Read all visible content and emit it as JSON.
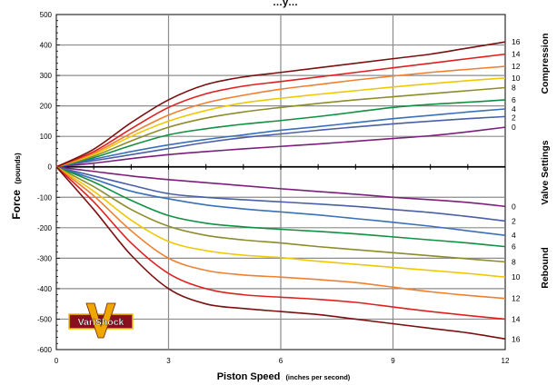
{
  "chart_data": {
    "type": "line",
    "title": "…y…",
    "xlabel": "Piston Speed",
    "xlabel_units": "(inches per second)",
    "ylabel": "Force",
    "ylabel_units": "(pounds)",
    "right_label_top": "Compression",
    "right_label_middle": "Valve Settings",
    "right_label_bottom": "Rebound",
    "xlim": [
      0,
      12
    ],
    "ylim": [
      -600,
      500
    ],
    "x_ticks": [
      0,
      3,
      6,
      9,
      12
    ],
    "y_ticks": [
      500,
      400,
      300,
      200,
      100,
      0,
      -100,
      -200,
      -300,
      -400,
      -500,
      -600
    ],
    "grid": true,
    "x": [
      0,
      1,
      2,
      3,
      4,
      5,
      6,
      7,
      8,
      9,
      10,
      11,
      12
    ],
    "series": [
      {
        "name": "0",
        "group": "compression",
        "color": "#7b1f7a",
        "values": [
          0,
          12,
          27,
          40,
          50,
          59,
          67,
          75,
          84,
          93,
          102,
          115,
          130
        ]
      },
      {
        "name": "2",
        "group": "compression",
        "color": "#4a5fa8",
        "values": [
          0,
          20,
          40,
          60,
          80,
          96,
          108,
          120,
          131,
          141,
          150,
          158,
          165
        ]
      },
      {
        "name": "4",
        "group": "compression",
        "color": "#3a70b8",
        "values": [
          0,
          25,
          50,
          72,
          90,
          105,
          120,
          132,
          145,
          158,
          169,
          180,
          190
        ]
      },
      {
        "name": "6",
        "group": "compression",
        "color": "#109040",
        "values": [
          0,
          30,
          70,
          105,
          125,
          140,
          152,
          165,
          180,
          195,
          205,
          212,
          220
        ]
      },
      {
        "name": "8",
        "group": "compression",
        "color": "#8c8c2a",
        "values": [
          0,
          35,
          85,
          130,
          160,
          180,
          195,
          208,
          220,
          230,
          240,
          250,
          260
        ]
      },
      {
        "name": "10",
        "group": "compression",
        "color": "#f0c800",
        "values": [
          0,
          40,
          100,
          150,
          185,
          210,
          225,
          238,
          250,
          262,
          273,
          283,
          292
        ]
      },
      {
        "name": "12",
        "group": "compression",
        "color": "#f08030",
        "values": [
          0,
          45,
          110,
          170,
          210,
          235,
          255,
          270,
          285,
          298,
          310,
          320,
          330
        ]
      },
      {
        "name": "14",
        "group": "compression",
        "color": "#e02020",
        "values": [
          0,
          50,
          125,
          195,
          240,
          265,
          280,
          295,
          310,
          325,
          340,
          355,
          370
        ]
      },
      {
        "name": "16",
        "group": "compression",
        "color": "#7a1010",
        "values": [
          0,
          58,
          145,
          220,
          270,
          295,
          310,
          325,
          340,
          355,
          370,
          390,
          410
        ]
      },
      {
        "name": "0",
        "group": "rebound",
        "color": "#7b1f7a",
        "values": [
          0,
          -15,
          -30,
          -42,
          -52,
          -62,
          -72,
          -81,
          -90,
          -100,
          -108,
          -117,
          -130
        ]
      },
      {
        "name": "2",
        "group": "rebound",
        "color": "#4a5fa8",
        "values": [
          0,
          -30,
          -60,
          -88,
          -100,
          -108,
          -115,
          -122,
          -130,
          -140,
          -150,
          -163,
          -178
        ]
      },
      {
        "name": "4",
        "group": "rebound",
        "color": "#3a70b8",
        "values": [
          0,
          -40,
          -80,
          -105,
          -125,
          -138,
          -148,
          -158,
          -170,
          -182,
          -195,
          -210,
          -225
        ]
      },
      {
        "name": "6",
        "group": "rebound",
        "color": "#109040",
        "values": [
          0,
          -50,
          -110,
          -160,
          -185,
          -197,
          -205,
          -212,
          -220,
          -230,
          -240,
          -250,
          -262
        ]
      },
      {
        "name": "8",
        "group": "rebound",
        "color": "#8c8c2a",
        "values": [
          0,
          -65,
          -140,
          -195,
          -225,
          -240,
          -250,
          -262,
          -272,
          -282,
          -292,
          -302,
          -312
        ]
      },
      {
        "name": "10",
        "group": "rebound",
        "color": "#f0c800",
        "values": [
          0,
          -80,
          -175,
          -245,
          -275,
          -290,
          -298,
          -310,
          -320,
          -330,
          -340,
          -350,
          -362
        ]
      },
      {
        "name": "12",
        "group": "rebound",
        "color": "#f08030",
        "values": [
          0,
          -95,
          -210,
          -300,
          -340,
          -355,
          -362,
          -370,
          -380,
          -395,
          -410,
          -422,
          -432
        ]
      },
      {
        "name": "14",
        "group": "rebound",
        "color": "#e02020",
        "values": [
          0,
          -115,
          -250,
          -350,
          -400,
          -420,
          -428,
          -435,
          -445,
          -460,
          -475,
          -488,
          -500
        ]
      },
      {
        "name": "16",
        "group": "rebound",
        "color": "#7a1010",
        "values": [
          0,
          -140,
          -290,
          -400,
          -450,
          -465,
          -475,
          -485,
          -500,
          -515,
          -530,
          -545,
          -565
        ]
      }
    ]
  },
  "logo": {
    "text": "VariShock",
    "letter": "V",
    "colors": {
      "bg": "#8a0f1e",
      "border": "#f0c000",
      "letter": "#f0a800",
      "text": "#ffffff"
    }
  },
  "colors": {
    "grid": "#8c8c8c",
    "axis": "#000000"
  }
}
